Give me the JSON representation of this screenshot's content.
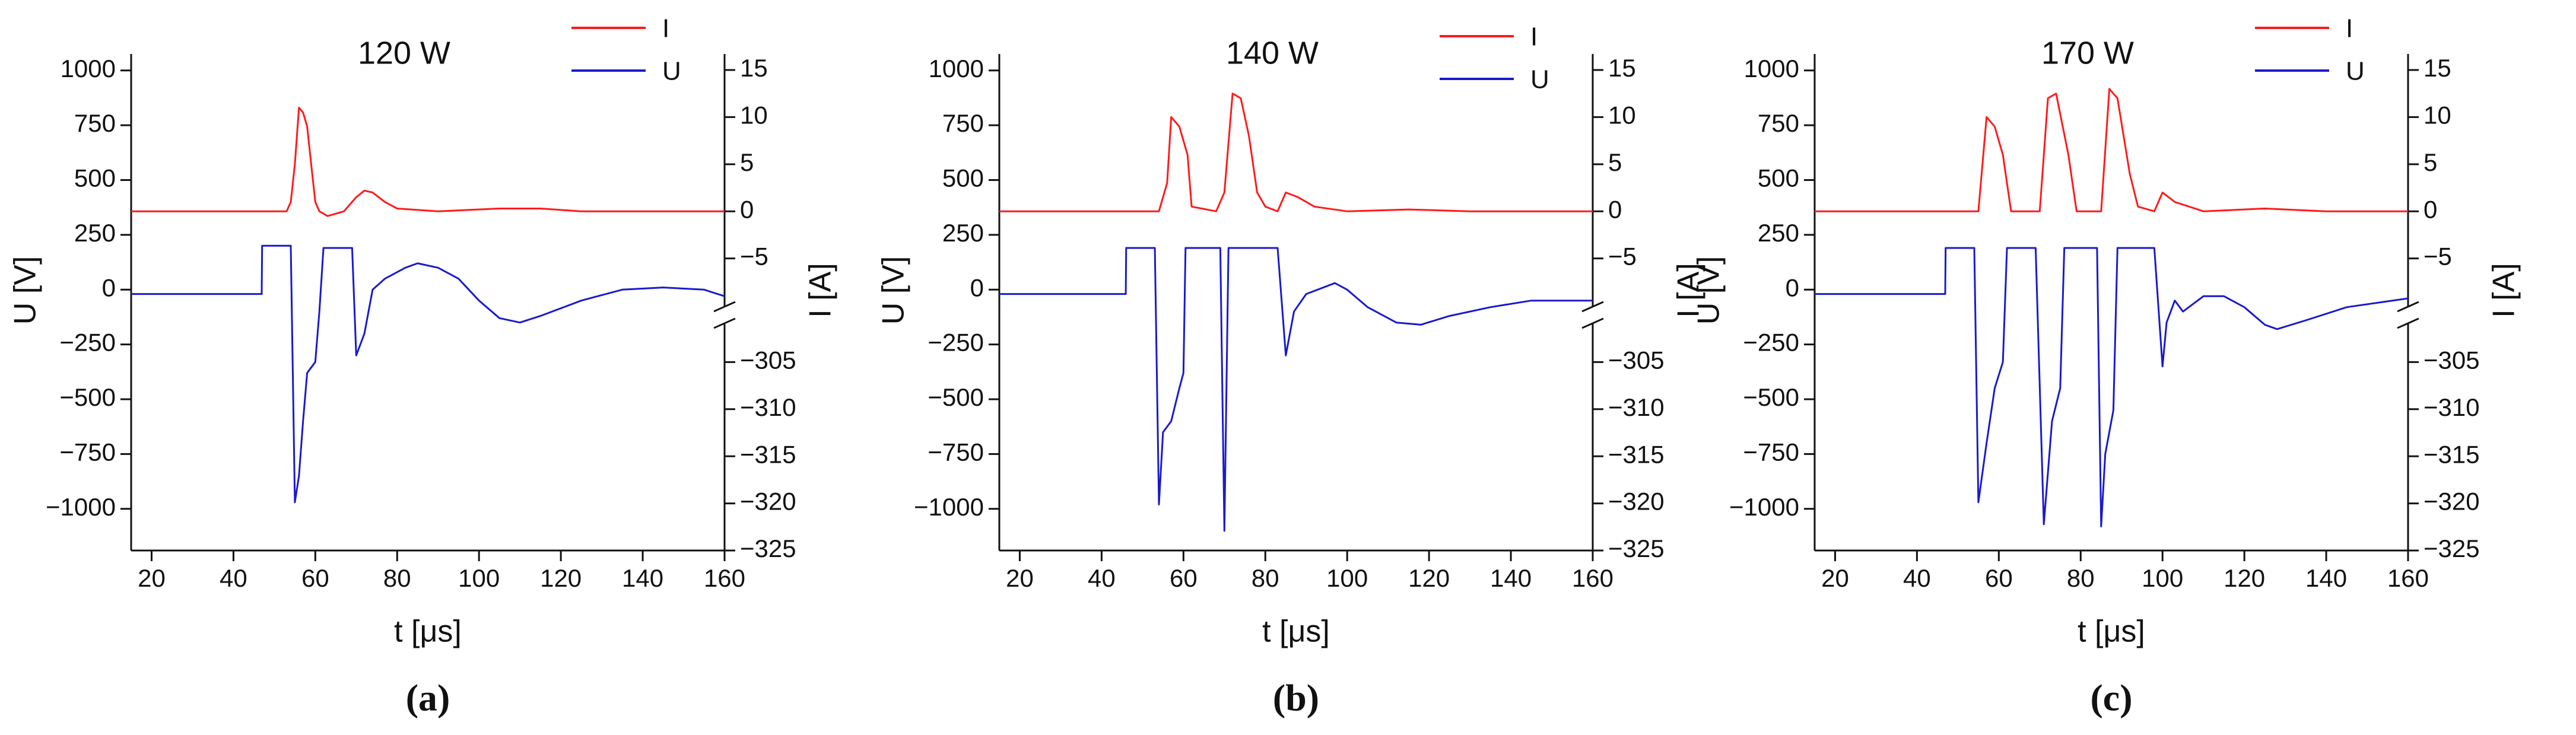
{
  "chart_data": [
    {
      "type": "line",
      "title": "120 W",
      "xlabel": "t [μs]",
      "ylabel": "U [V]",
      "y2label": "I [A]",
      "panel_label": "(a)",
      "xlim": [
        15,
        160
      ],
      "xticks": [
        20,
        40,
        60,
        80,
        100,
        120,
        140,
        160
      ],
      "ylim": [
        -1190,
        1075
      ],
      "yticks": [
        {
          "value": -1000,
          "label": "−1000"
        },
        {
          "value": -750,
          "label": "−750"
        },
        {
          "value": -500,
          "label": "−500"
        },
        {
          "value": -250,
          "label": "−250"
        },
        0,
        250,
        500,
        750,
        1000
      ],
      "y2lim": [
        -325,
        16.7
      ],
      "y2break": [
        -11,
        -300
      ],
      "y2ticks": [
        {
          "value": -325,
          "label": "−325"
        },
        {
          "value": -320,
          "label": "−320"
        },
        {
          "value": -315,
          "label": "−315"
        },
        {
          "value": -310,
          "label": "−310"
        },
        {
          "value": -305,
          "label": "−305"
        },
        {
          "value": -5,
          "label": "−5"
        },
        0,
        5,
        10,
        15
      ],
      "legend": "upper right",
      "series": [
        {
          "name": "I",
          "color": "#ff1a1a",
          "axis": "y2",
          "x": [
            15,
            53,
            54,
            55,
            56,
            57,
            58,
            59,
            60,
            61,
            63,
            67,
            70,
            72,
            74,
            77,
            80,
            90,
            105,
            115,
            125,
            160
          ],
          "values": [
            0,
            0,
            1,
            5,
            11,
            10.5,
            9,
            5,
            1,
            0,
            -0.5,
            0,
            1.5,
            2.2,
            2,
            1,
            0.3,
            0,
            0.3,
            0.3,
            0,
            0
          ]
        },
        {
          "name": "U",
          "color": "#1a1acc",
          "axis": "y",
          "x": [
            15,
            46.9,
            47,
            54,
            55,
            56,
            57,
            58,
            60,
            61,
            62,
            69,
            70,
            72,
            74,
            77,
            82,
            85,
            90,
            95,
            100,
            105,
            110,
            115,
            125,
            135,
            145,
            155,
            160
          ],
          "values": [
            -20,
            -20,
            200,
            200,
            -970,
            -850,
            -600,
            -380,
            -330,
            -100,
            190,
            190,
            -300,
            -200,
            0,
            50,
            100,
            120,
            100,
            50,
            -50,
            -130,
            -150,
            -120,
            -50,
            0,
            10,
            0,
            -30
          ]
        }
      ]
    },
    {
      "type": "line",
      "title": "140 W",
      "xlabel": "t [μs]",
      "ylabel": "U [V]",
      "y2label": "I [A]",
      "panel_label": "(b)",
      "xlim": [
        15,
        160
      ],
      "xticks": [
        20,
        40,
        60,
        80,
        100,
        120,
        140,
        160
      ],
      "ylim": [
        -1190,
        1075
      ],
      "yticks": [
        {
          "value": -1000,
          "label": "−1000"
        },
        {
          "value": -750,
          "label": "−750"
        },
        {
          "value": -500,
          "label": "−500"
        },
        {
          "value": -250,
          "label": "−250"
        },
        0,
        250,
        500,
        750,
        1000
      ],
      "y2lim": [
        -325,
        16.7
      ],
      "y2break": [
        -11,
        -300
      ],
      "y2ticks": [
        {
          "value": -325,
          "label": "−325"
        },
        {
          "value": -320,
          "label": "−320"
        },
        {
          "value": -315,
          "label": "−315"
        },
        {
          "value": -310,
          "label": "−310"
        },
        {
          "value": -305,
          "label": "−305"
        },
        {
          "value": -5,
          "label": "−5"
        },
        0,
        5,
        10,
        15
      ],
      "legend": "upper right",
      "series": [
        {
          "name": "I",
          "color": "#ff1a1a",
          "axis": "y2",
          "x": [
            15,
            54,
            56,
            57,
            59,
            61,
            62,
            68,
            70,
            72,
            74,
            76,
            78,
            80,
            83,
            85,
            88,
            92,
            100,
            115,
            130,
            160
          ],
          "values": [
            0,
            0,
            3,
            10,
            9,
            6,
            0.5,
            0,
            2,
            12.5,
            12,
            8,
            2,
            0.5,
            0,
            2,
            1.5,
            0.5,
            0,
            0.2,
            0,
            0
          ]
        },
        {
          "name": "U",
          "color": "#1a1acc",
          "axis": "y",
          "x": [
            15,
            45.9,
            46,
            53,
            54,
            55,
            57,
            59,
            60,
            60.5,
            61,
            69,
            70,
            71,
            83,
            85,
            87,
            90,
            97,
            100,
            105,
            112,
            118,
            125,
            135,
            145,
            160
          ],
          "values": [
            -20,
            -20,
            190,
            190,
            -980,
            -650,
            -600,
            -450,
            -380,
            190,
            190,
            190,
            -1100,
            190,
            190,
            -300,
            -100,
            -20,
            30,
            0,
            -80,
            -150,
            -160,
            -120,
            -80,
            -50,
            -50
          ]
        }
      ]
    },
    {
      "type": "line",
      "title": "170 W",
      "xlabel": "t [μs]",
      "ylabel": "U [V]",
      "y2label": "I [A]",
      "panel_label": "(c)",
      "xlim": [
        15,
        160
      ],
      "xticks": [
        20,
        40,
        60,
        80,
        100,
        120,
        140,
        160
      ],
      "ylim": [
        -1190,
        1075
      ],
      "yticks": [
        {
          "value": -1000,
          "label": "−1000"
        },
        {
          "value": -750,
          "label": "−750"
        },
        {
          "value": -500,
          "label": "−500"
        },
        {
          "value": -250,
          "label": "−250"
        },
        0,
        250,
        500,
        750,
        1000
      ],
      "y2lim": [
        -325,
        16.7
      ],
      "y2break": [
        -11,
        -300
      ],
      "y2ticks": [
        {
          "value": -325,
          "label": "−325"
        },
        {
          "value": -320,
          "label": "−320"
        },
        {
          "value": -315,
          "label": "−315"
        },
        {
          "value": -310,
          "label": "−310"
        },
        {
          "value": -305,
          "label": "−305"
        },
        {
          "value": -5,
          "label": "−5"
        },
        0,
        5,
        10,
        15
      ],
      "legend": "upper right",
      "series": [
        {
          "name": "I",
          "color": "#ff1a1a",
          "axis": "y2",
          "x": [
            15,
            55,
            57,
            59,
            61,
            63,
            70,
            72,
            74,
            77,
            79,
            85,
            87,
            89,
            92,
            94,
            98,
            100,
            103,
            110,
            125,
            140,
            160
          ],
          "values": [
            0,
            0,
            10,
            9,
            6,
            0,
            0,
            12,
            12.5,
            6,
            0,
            0,
            13,
            12,
            4,
            0.5,
            0,
            2,
            1,
            0,
            0.3,
            0,
            0
          ]
        },
        {
          "name": "U",
          "color": "#1a1acc",
          "axis": "y",
          "x": [
            15,
            46.9,
            47,
            54,
            55,
            57,
            59,
            61,
            62,
            69,
            71,
            73,
            75,
            76,
            84,
            85,
            86,
            88,
            89,
            98,
            100,
            101,
            103,
            105,
            110,
            115,
            120,
            125,
            128,
            135,
            145,
            160
          ],
          "values": [
            -20,
            -20,
            190,
            190,
            -970,
            -700,
            -450,
            -330,
            190,
            190,
            -1070,
            -600,
            -450,
            190,
            190,
            -1080,
            -750,
            -550,
            190,
            190,
            -350,
            -150,
            -50,
            -100,
            -30,
            -30,
            -80,
            -160,
            -180,
            -140,
            -80,
            -40
          ]
        }
      ]
    }
  ]
}
